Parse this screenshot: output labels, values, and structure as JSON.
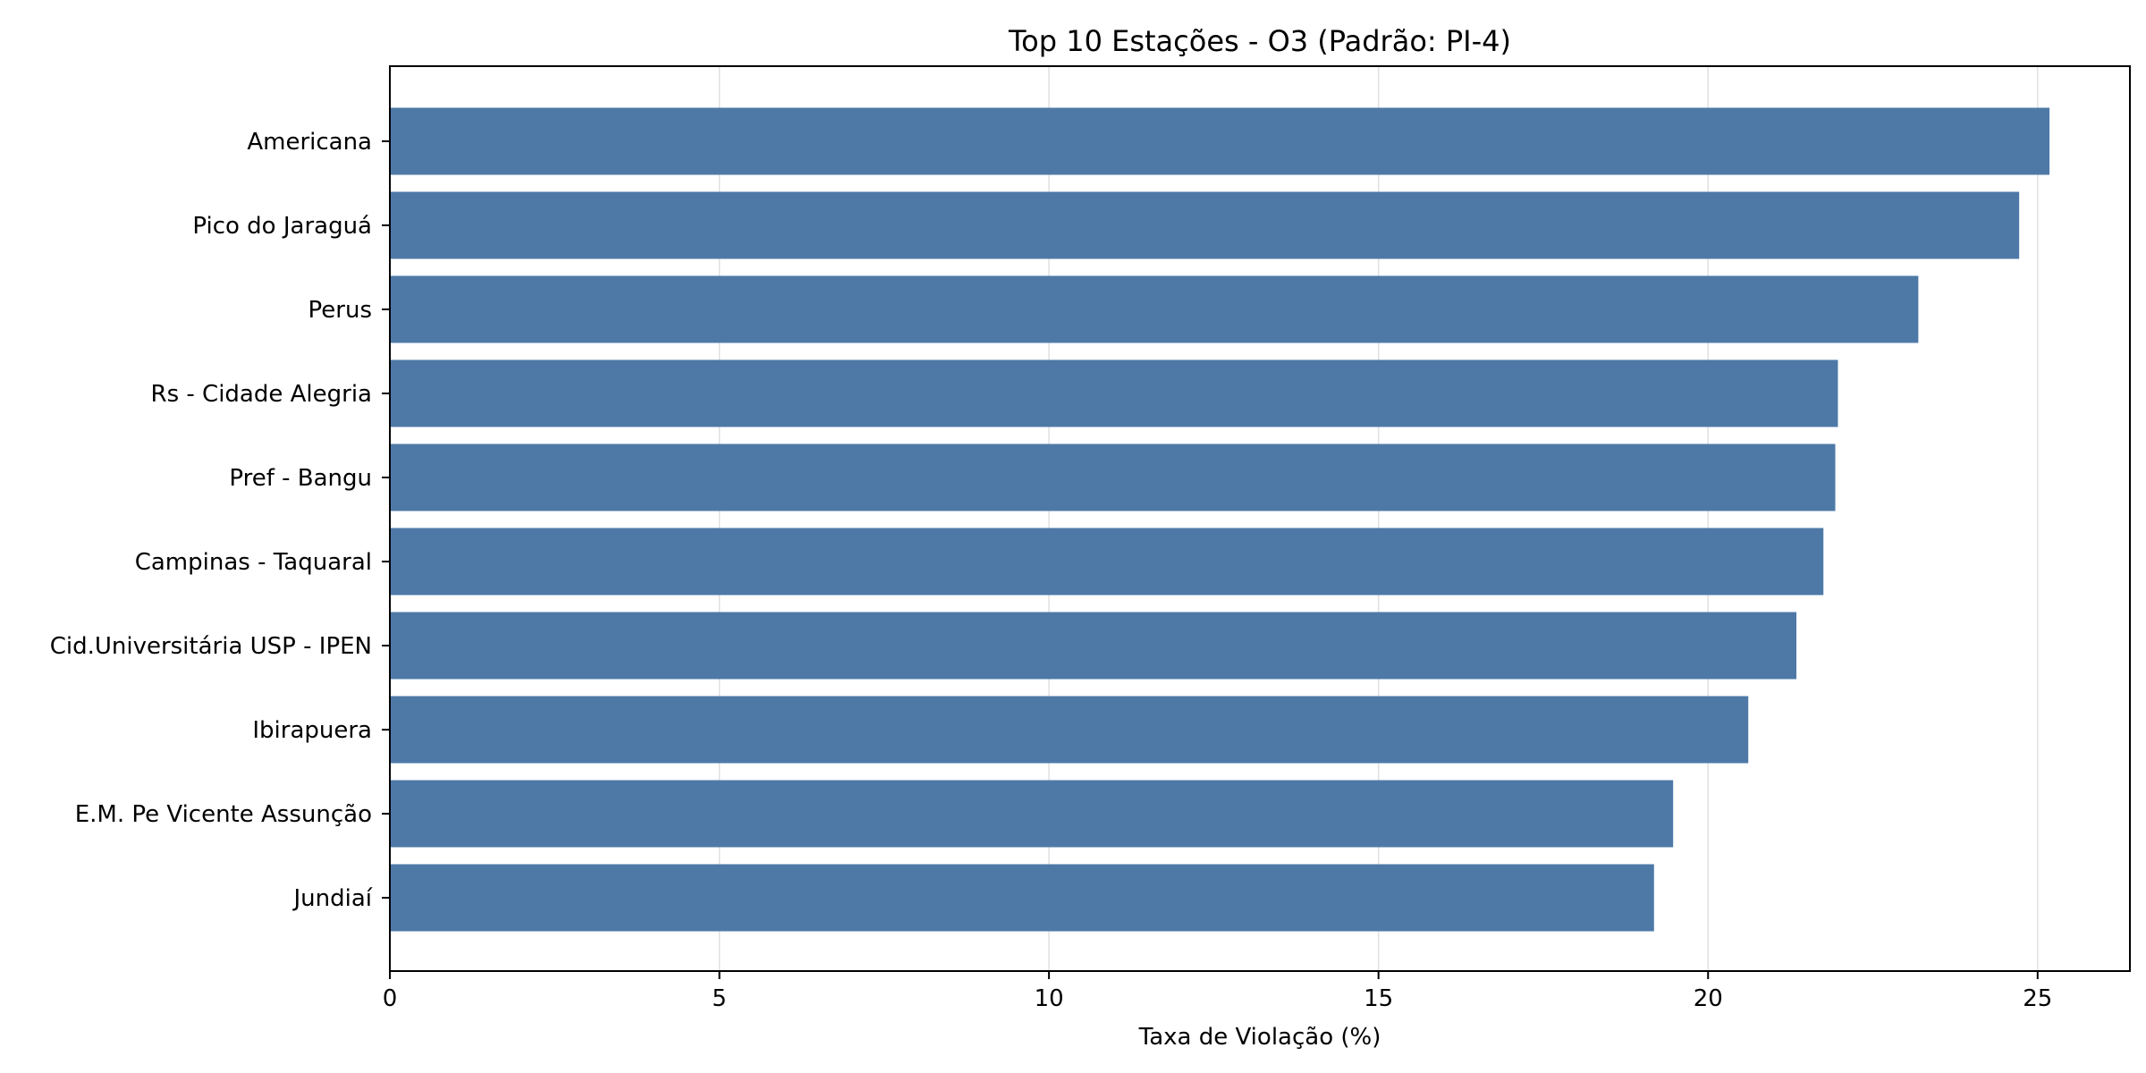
{
  "chart_data": {
    "type": "bar",
    "orientation": "horizontal",
    "title": "Top 10 Estações - O3 (Padrão: PI-4)",
    "xlabel": "Taxa de Violação (%)",
    "ylabel": "",
    "categories": [
      "Americana",
      "Pico do Jaraguá",
      "Perus",
      "Rs - Cidade Alegria",
      "Pref - Bangu",
      "Campinas - Taquaral",
      "Cid.Universitária USP - IPEN",
      "Ibirapuera",
      "E.M. Pe Vicente Assunção",
      "Jundiaí"
    ],
    "values": [
      25.18,
      24.72,
      23.19,
      21.97,
      21.93,
      21.75,
      21.34,
      20.61,
      19.47,
      19.18
    ],
    "xlim": [
      0,
      26.4
    ],
    "xticks": [
      "0",
      "5",
      "10",
      "15",
      "20",
      "25"
    ],
    "grid": "vertical",
    "bar_color": "#4e79a7",
    "grid_color": "#e0e0e0"
  }
}
